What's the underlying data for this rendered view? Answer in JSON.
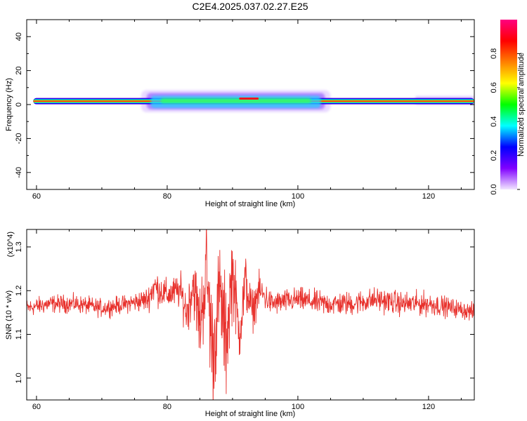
{
  "title": "C2E4.2025.037.02.27.E25",
  "chart_data": [
    {
      "type": "heatmap",
      "title": "C2E4.2025.037.02.27.E25",
      "xlabel": "Height of straight line (km)",
      "ylabel": "Frequency (Hz)",
      "xlim": [
        58.5,
        127
      ],
      "ylim": [
        -50,
        50
      ],
      "xticks": [
        60,
        80,
        100,
        120
      ],
      "yticks": [
        -40,
        -20,
        0,
        20,
        40
      ],
      "colorbar": {
        "label": "Normalized spectral amplitude",
        "range": [
          0,
          1
        ],
        "ticks": [
          "0.0",
          "0.2",
          "0.4",
          "0.6",
          "0.8"
        ],
        "colors": [
          "#f2e6ff",
          "#8000ff",
          "#0000ff",
          "#00ffff",
          "#00ff00",
          "#ffff00",
          "#ff8000",
          "#ff0000",
          "#ff0080"
        ]
      },
      "band_center_hz": 2,
      "band_x_range": [
        59.5,
        127
      ],
      "broad_region_x": [
        76,
        105
      ],
      "broad_region_hz": [
        -2,
        6
      ]
    },
    {
      "type": "line",
      "xlabel": "Height of straight line (km)",
      "ylabel": "SNR (10 * v/v)",
      "scale_note": "(x10^4)",
      "xlim": [
        58.5,
        127
      ],
      "ylim": [
        0.95,
        1.34
      ],
      "xticks": [
        60,
        80,
        100,
        120
      ],
      "yticks": [
        "1.0",
        "1.1",
        "1.2",
        "1.3"
      ],
      "ytick_values": [
        1.0,
        1.1,
        1.2,
        1.3
      ],
      "series": [
        {
          "color": "#e8322d",
          "x": [
            58.5,
            62,
            66,
            70,
            74,
            77,
            78,
            80,
            82,
            83,
            84,
            85,
            86,
            87,
            88,
            89,
            90,
            91,
            92,
            93,
            94,
            96,
            100,
            104,
            108,
            112,
            116,
            120,
            124,
            127
          ],
          "y": [
            1.16,
            1.17,
            1.17,
            1.16,
            1.17,
            1.18,
            1.21,
            1.19,
            1.2,
            1.15,
            1.22,
            1.12,
            1.25,
            1.05,
            1.2,
            1.08,
            1.25,
            1.1,
            1.22,
            1.15,
            1.2,
            1.17,
            1.18,
            1.17,
            1.17,
            1.18,
            1.17,
            1.17,
            1.16,
            1.15
          ],
          "envelope": [
            0.03,
            0.03,
            0.03,
            0.03,
            0.03,
            0.04,
            0.06,
            0.05,
            0.06,
            0.08,
            0.1,
            0.14,
            0.18,
            0.2,
            0.16,
            0.2,
            0.14,
            0.1,
            0.1,
            0.07,
            0.06,
            0.04,
            0.04,
            0.04,
            0.04,
            0.04,
            0.04,
            0.04,
            0.03,
            0.03
          ]
        }
      ]
    }
  ]
}
